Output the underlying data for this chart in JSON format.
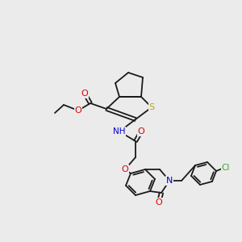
{
  "bg_color": "#ebebeb",
  "bond_color": "#1a1a1a",
  "figsize": [
    3.0,
    3.0
  ],
  "dpi": 100,
  "atom_colors": {
    "O": "#dd0000",
    "N": "#0000cc",
    "S": "#bbaa00",
    "Cl": "#33aa33",
    "C": "#1a1a1a"
  },
  "lw": 1.3
}
